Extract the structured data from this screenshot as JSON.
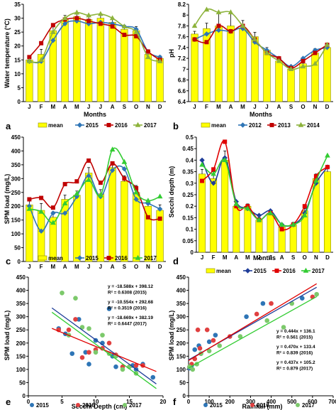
{
  "chart_data": [
    {
      "panel": "a",
      "type": "bar",
      "ylabel": "Water temperature (°C)",
      "xlabel": "Months",
      "categories": [
        "J",
        "F",
        "M",
        "A",
        "M",
        "J",
        "J",
        "A",
        "S",
        "O",
        "N",
        "D"
      ],
      "ylim": [
        0,
        35
      ],
      "yticks": [
        0,
        5,
        10,
        15,
        20,
        25,
        30,
        35
      ],
      "bar": {
        "name": "mean",
        "values": [
          15,
          17,
          25.5,
          29.5,
          30.5,
          29.5,
          30,
          28.5,
          26,
          25.5,
          17,
          15.5
        ],
        "errors": [
          1.2,
          1.8,
          2.5,
          1.5,
          1,
          1,
          1,
          1.5,
          1.5,
          1.5,
          1.5,
          1
        ]
      },
      "series": [
        {
          "name": "2015",
          "values": [
            14.5,
            14.5,
            22,
            28,
            29,
            28,
            28.5,
            28,
            27,
            26,
            18,
            16
          ]
        },
        {
          "name": "2016",
          "values": [
            16,
            21,
            27.5,
            29.5,
            30,
            29,
            28,
            27,
            24,
            23.5,
            18,
            15
          ]
        },
        {
          "name": "2017",
          "values": [
            14.5,
            15,
            25,
            30,
            32,
            31,
            31.5,
            30,
            27,
            25,
            16,
            14.5
          ]
        }
      ],
      "colors": {
        "bar": "#ffff00",
        "2015": "#2e75b6",
        "2016": "#c00000",
        "2017": "#8db33c"
      }
    },
    {
      "panel": "b",
      "type": "bar",
      "ylabel": "pH",
      "xlabel": "Months",
      "categories": [
        "J",
        "F",
        "M",
        "A",
        "M",
        "J",
        "J",
        "A",
        "S",
        "O",
        "N",
        "D"
      ],
      "ylim": [
        6.4,
        8.2
      ],
      "yticks": [
        "6.4",
        "6.6",
        "6.8",
        "7",
        "7.2",
        "7.4",
        "7.6",
        "7.8",
        "8",
        "8.2"
      ],
      "bar": {
        "name": "mean",
        "values": [
          7.65,
          7.75,
          7.8,
          7.8,
          7.75,
          7.6,
          7.35,
          7.15,
          7.0,
          7.1,
          7.3,
          7.4
        ],
        "errors": [
          0.05,
          0.1,
          0.25,
          0.25,
          0.15,
          0.08,
          0.05,
          0.05,
          0.03,
          0.05,
          0.08,
          0.05
        ]
      },
      "series": [
        {
          "name": "2012",
          "values": [
            7.55,
            7.65,
            7.72,
            7.7,
            7.75,
            7.5,
            7.35,
            7.2,
            7.05,
            7.2,
            7.35,
            7.4
          ]
        },
        {
          "name": "2013",
          "values": [
            7.55,
            7.5,
            7.8,
            7.7,
            7.8,
            7.55,
            7.3,
            7.2,
            7.02,
            7.15,
            7.3,
            7.45
          ]
        },
        {
          "name": "2014",
          "values": [
            7.8,
            8.1,
            8.05,
            8.05,
            7.8,
            7.55,
            7.3,
            7.15,
            7.0,
            7.05,
            7.1,
            7.45
          ]
        }
      ],
      "colors": {
        "bar": "#ffff00",
        "2012": "#2e75b6",
        "2013": "#c00000",
        "2014": "#8db33c"
      }
    },
    {
      "panel": "c",
      "type": "bar",
      "ylabel": "SPM load (mg/L)",
      "xlabel": "",
      "categories": [
        "J",
        "F",
        "M",
        "A",
        "M",
        "J",
        "J",
        "A",
        "S",
        "O",
        "N",
        "D"
      ],
      "ylim": [
        0,
        450
      ],
      "yticks": [
        0,
        50,
        100,
        150,
        200,
        250,
        300,
        350,
        400,
        450
      ],
      "bar": {
        "name": "mean",
        "values": [
          205,
          185,
          160,
          225,
          240,
          320,
          245,
          340,
          290,
          250,
          200,
          185
        ],
        "errors": [
          20,
          25,
          20,
          15,
          15,
          20,
          15,
          20,
          20,
          25,
          20,
          20
        ]
      },
      "series": [
        {
          "name": "2015",
          "values": [
            200,
            110,
            175,
            175,
            235,
            310,
            235,
            330,
            335,
            225,
            210,
            190
          ]
        },
        {
          "name": "2016",
          "values": [
            225,
            230,
            195,
            280,
            290,
            365,
            285,
            355,
            300,
            265,
            160,
            155
          ]
        },
        {
          "name": "2017",
          "values": [
            190,
            180,
            140,
            210,
            245,
            295,
            240,
            405,
            360,
            250,
            220,
            235
          ]
        }
      ],
      "colors": {
        "bar": "#ffff00",
        "2015": "#2e75b6",
        "2016": "#c00000",
        "2017": "#33cc33"
      }
    },
    {
      "panel": "d",
      "type": "bar",
      "ylabel": "Secchi depth (m)",
      "xlabel": "Months",
      "categories": [
        "J",
        "F",
        "M",
        "A",
        "M",
        "J",
        "J",
        "A",
        "S",
        "O",
        "N",
        "D"
      ],
      "ylim": [
        0,
        0.5
      ],
      "yticks": [
        "0",
        "0.05",
        "0.1",
        "0.15",
        "0.2",
        "0.25",
        "0.3",
        "0.35",
        "0.4",
        "0.45",
        "0.5"
      ],
      "bar": {
        "name": "mean",
        "values": [
          0.34,
          0.32,
          0.4,
          0.2,
          0.2,
          0.14,
          0.17,
          0.11,
          0.12,
          0.18,
          0.32,
          0.35
        ],
        "errors": [
          0.02,
          0.03,
          0.04,
          0.01,
          0.01,
          0.01,
          0.01,
          0.01,
          0.01,
          0.01,
          0.02,
          0.02
        ]
      },
      "series": [
        {
          "name": "2015",
          "values": [
            0.4,
            0.3,
            0.41,
            0.22,
            0.19,
            0.16,
            0.18,
            0.12,
            0.12,
            0.17,
            0.3,
            0.37
          ]
        },
        {
          "name": "2016",
          "values": [
            0.31,
            0.36,
            0.48,
            0.2,
            0.2,
            0.14,
            0.17,
            0.1,
            0.12,
            0.2,
            0.33,
            0.37
          ]
        },
        {
          "name": "2017",
          "values": [
            0.38,
            0.34,
            0.4,
            0.21,
            0.19,
            0.14,
            0.17,
            0.12,
            0.12,
            0.16,
            0.31,
            0.42
          ]
        }
      ],
      "colors": {
        "bar": "#ffff00",
        "2015": "#1f3d99",
        "2016": "#e00000",
        "2017": "#33cc33"
      }
    },
    {
      "panel": "e",
      "type": "scatter",
      "ylabel": "SPM load (mg/L)",
      "xlabel": "Secchi Depth (cm)",
      "xlim": [
        0,
        20
      ],
      "ylim": [
        0,
        450
      ],
      "xticks": [
        0,
        5,
        10,
        15,
        20
      ],
      "yticks": [
        0,
        50,
        100,
        150,
        200,
        250,
        300,
        350,
        400,
        450
      ],
      "equations": [
        "y = -18.588x + 398.12",
        "R² = 0.6308 (2015)",
        "y = -10.554x + 292.68",
        "R² = 0.3519 (2016)",
        "y = -18.669x + 382.19",
        "R² = 0.6447 (2017)"
      ],
      "series": [
        {
          "name": "2015",
          "points": [
            [
              4.5,
              255
            ],
            [
              5.5,
              235
            ],
            [
              6.5,
              160
            ],
            [
              7.5,
              290
            ],
            [
              8.5,
              165
            ],
            [
              9,
              120
            ],
            [
              10,
              210
            ],
            [
              11,
              200
            ],
            [
              12,
              330
            ],
            [
              12.5,
              150
            ],
            [
              13,
              110
            ],
            [
              15.5,
              115
            ],
            [
              16,
              100
            ],
            [
              17,
              120
            ],
            [
              18.5,
              70
            ]
          ],
          "trend": [
            -18.588,
            398.12
          ]
        },
        {
          "name": "2016",
          "points": [
            [
              4.5,
              250
            ],
            [
              6,
              250
            ],
            [
              7,
              290
            ],
            [
              8,
              145
            ],
            [
              9,
              165
            ],
            [
              10,
              175
            ],
            [
              11,
              180
            ],
            [
              12,
              200
            ],
            [
              13,
              155
            ],
            [
              14,
              110
            ],
            [
              15,
              110
            ],
            [
              16,
              115
            ],
            [
              17,
              115
            ]
          ],
          "trend": [
            -10.554,
            292.68
          ]
        },
        {
          "name": "2017",
          "points": [
            [
              5,
              390
            ],
            [
              6,
              230
            ],
            [
              7,
              370
            ],
            [
              8,
              260
            ],
            [
              9,
              255
            ],
            [
              10,
              165
            ],
            [
              11,
              230
            ],
            [
              12,
              160
            ],
            [
              13,
              150
            ],
            [
              14,
              100
            ],
            [
              15,
              110
            ],
            [
              16,
              85
            ]
          ],
          "trend": [
            -18.669,
            382.19
          ]
        }
      ],
      "legend": [
        "2015",
        "2016",
        "2017"
      ],
      "colors": {
        "2015": "#2e75b6",
        "2016": "#e04040",
        "2017": "#7cc96b"
      }
    },
    {
      "panel": "f",
      "type": "scatter",
      "ylabel": "SPM load (mg/L)",
      "xlabel": "Rainfall (mm)",
      "xlim": [
        0,
        700
      ],
      "ylim": [
        0,
        450
      ],
      "xticks": [
        0,
        100,
        200,
        300,
        400,
        500,
        600,
        700
      ],
      "yticks": [
        0,
        50,
        100,
        150,
        200,
        250,
        300,
        350,
        400,
        450
      ],
      "equations": [
        "y = 0.444x + 136.1",
        "R² = 0.561 (2015)",
        "y = 0.470x + 133.4",
        "R² = 0.839 (2016)",
        "y = 0.437x + 105.2",
        "R² = 0.879 (2017)"
      ],
      "series": [
        {
          "name": "2015",
          "points": [
            [
              5,
              105
            ],
            [
              15,
              115
            ],
            [
              30,
              175
            ],
            [
              50,
              190
            ],
            [
              60,
              160
            ],
            [
              100,
              205
            ],
            [
              130,
              230
            ],
            [
              280,
              300
            ],
            [
              360,
              350
            ],
            [
              550,
              370
            ]
          ],
          "trend": [
            0.444,
            136.1
          ]
        },
        {
          "name": "2016",
          "points": [
            [
              5,
              110
            ],
            [
              15,
              120
            ],
            [
              30,
              140
            ],
            [
              45,
              250
            ],
            [
              55,
              180
            ],
            [
              90,
              250
            ],
            [
              120,
              210
            ],
            [
              200,
              225
            ],
            [
              330,
              310
            ],
            [
              400,
              350
            ],
            [
              600,
              375
            ]
          ],
          "trend": [
            0.47,
            133.4
          ]
        },
        {
          "name": "2017",
          "points": [
            [
              5,
              110
            ],
            [
              20,
              100
            ],
            [
              40,
              120
            ],
            [
              60,
              160
            ],
            [
              100,
              170
            ],
            [
              150,
              190
            ],
            [
              250,
              225
            ],
            [
              380,
              285
            ],
            [
              460,
              260
            ],
            [
              500,
              350
            ],
            [
              620,
              385
            ]
          ],
          "trend": [
            0.437,
            105.2
          ]
        }
      ],
      "legend": [
        "2015",
        "2016",
        "2017"
      ],
      "colors": {
        "2015": "#2e75b6",
        "2016": "#e04040",
        "2017": "#7cc96b"
      }
    }
  ]
}
